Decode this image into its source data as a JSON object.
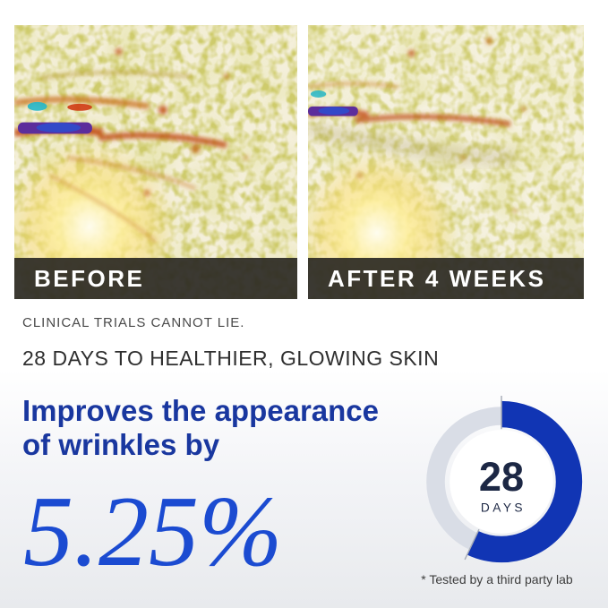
{
  "comparison": {
    "panels": [
      {
        "label": "BEFORE"
      },
      {
        "label": "AFTER 4 WEEKS"
      }
    ]
  },
  "claims": {
    "eyebrow": "CLINICAL TRIALS CANNOT LIE.",
    "headline": "28 DAYS TO HEALTHIER, GLOWING SKIN",
    "statement_line1": "Improves the appearance",
    "statement_line2": "of wrinkles by",
    "percentage": "5.25%"
  },
  "donut": {
    "center_value": "28",
    "center_unit": "DAYS",
    "fill_percent": 57
  },
  "footnote": "* Tested by a third party lab",
  "colors": {
    "accent_blue": "#19379f",
    "percent_blue": "#1b4bd1",
    "navy": "#1c2744",
    "donut_fill": "#1135b4",
    "donut_track": "#d9dde6",
    "label_bar_bg": "#2b2924"
  }
}
